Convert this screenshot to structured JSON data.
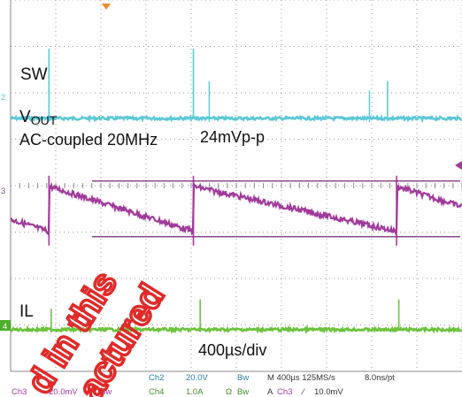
{
  "chart_data": {
    "type": "line",
    "title": "",
    "annotations": {
      "sw_label": "SW",
      "vout_label_main": "V",
      "vout_label_sub": "OUT",
      "ac_coupled": "AC-coupled 20MHz",
      "ripple": "24mVp-p",
      "il_label": "IL",
      "timebase": "400µs/div"
    },
    "channel_markers": [
      "2",
      "3",
      "4"
    ],
    "grid": {
      "divisions_x": 10,
      "divisions_y": 8,
      "show": true
    },
    "time_per_div_us": 400,
    "series": [
      {
        "name": "SW",
        "channel": 2,
        "color": "#5bc8d6",
        "kind": "spikes",
        "baseline_div": 2.55,
        "spike_times_div": [
          0.85,
          4.05,
          8.35
        ],
        "spike_heights_div": [
          1.5,
          1.5,
          0.8
        ],
        "secondary_spike_times_div": [
          4.4,
          7.95
        ],
        "secondary_spike_heights_div": [
          0.8,
          0.6
        ]
      },
      {
        "name": "VOUT",
        "channel": 3,
        "color": "#a03a9a",
        "kind": "sawtooth",
        "center_div": 4.48,
        "ripple_mVpp": 24,
        "reset_times_div": [
          0.85,
          4.05,
          8.55
        ],
        "ripple_lines_div": [
          3.9,
          5.1
        ]
      },
      {
        "name": "IL",
        "channel": 4,
        "color": "#6cc23c",
        "kind": "spikes",
        "baseline_div": 7.1,
        "spike_times_div": [
          0.9,
          4.2,
          8.6
        ],
        "spike_heights_div": [
          0.45,
          0.65,
          0.65
        ]
      }
    ],
    "settings": {
      "ch2": "Ch2",
      "ch2_scale": "20.0V",
      "ch4": "Ch4",
      "ch4_scale": "1.0A",
      "ohm": "Ω",
      "bw1": "Bw",
      "bw2": "Bw",
      "bw3": "Bw",
      "time": "M 400µs 125MS/s",
      "pt": "8.0ns/pt",
      "trig_a": "A",
      "trig_src": "Ch3",
      "trig_slope": "⁄",
      "trig_level": "10.0mV",
      "ch3": "Ch3",
      "ch3_scale": "20.0mV"
    },
    "watermark": {
      "line1": "d in this",
      "line2": "actured",
      "color": "#e02a2a"
    }
  }
}
